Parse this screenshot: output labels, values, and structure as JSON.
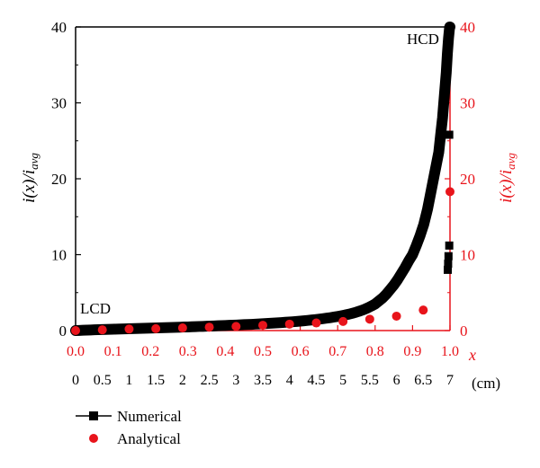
{
  "chart_data": {
    "type": "line",
    "xlabel_relative": "x",
    "xlabel_cm_unit": "(cm)",
    "ylabel_left": {
      "prefix": "i(x)/i",
      "subscript": "avg"
    },
    "ylabel_right": {
      "prefix": "i(x)/i",
      "subscript": "avg"
    },
    "xlim": [
      0.0,
      1.0
    ],
    "ylim": [
      0,
      40
    ],
    "x_ticks_relative": [
      "0.0",
      "0.1",
      "0.2",
      "0.3",
      "0.4",
      "0.5",
      "0.6",
      "0.7",
      "0.8",
      "0.9",
      "1.0"
    ],
    "x_ticks_cm": [
      "0",
      "0.5",
      "1",
      "1.5",
      "2",
      "2.5",
      "3",
      "3.5",
      "4",
      "4.5",
      "5",
      "5.5",
      "6",
      "6.5",
      "7"
    ],
    "y_ticks": [
      "0",
      "10",
      "20",
      "30",
      "40"
    ],
    "annotations": {
      "low": "LCD",
      "high": "HCD"
    },
    "colors": {
      "numerical": "#000000",
      "analytical": "#e8141b",
      "right_axis": "#e8141b"
    },
    "series": [
      {
        "name": "Numerical",
        "marker": "square",
        "x": [
          0.0,
          0.01,
          0.02,
          0.03,
          0.04,
          0.05,
          0.06,
          0.07,
          0.08,
          0.09,
          0.1,
          0.11,
          0.12,
          0.13,
          0.14,
          0.15,
          0.16,
          0.17,
          0.18,
          0.19,
          0.2,
          0.21,
          0.22,
          0.23,
          0.24,
          0.25,
          0.26,
          0.27,
          0.28,
          0.29,
          0.3,
          0.31,
          0.32,
          0.33,
          0.34,
          0.35,
          0.36,
          0.37,
          0.38,
          0.39,
          0.4,
          0.41,
          0.42,
          0.43,
          0.44,
          0.45,
          0.46,
          0.47,
          0.48,
          0.49,
          0.5,
          0.51,
          0.52,
          0.53,
          0.54,
          0.55,
          0.56,
          0.57,
          0.58,
          0.59,
          0.6,
          0.61,
          0.62,
          0.63,
          0.64,
          0.65,
          0.66,
          0.67,
          0.68,
          0.69,
          0.7,
          0.71,
          0.72,
          0.73,
          0.74,
          0.75,
          0.76,
          0.77,
          0.78,
          0.79,
          0.8,
          0.81,
          0.82,
          0.83,
          0.84,
          0.85,
          0.86,
          0.87,
          0.88,
          0.89,
          0.9,
          0.91,
          0.92,
          0.93,
          0.94,
          0.95,
          0.96,
          0.97,
          0.975,
          0.98,
          0.985,
          0.99,
          0.993,
          0.996,
          0.998,
          0.999,
          1.0
        ],
        "y": [
          0.0,
          0.02,
          0.04,
          0.06,
          0.08,
          0.1,
          0.12,
          0.13,
          0.15,
          0.16,
          0.18,
          0.19,
          0.21,
          0.22,
          0.24,
          0.25,
          0.27,
          0.28,
          0.3,
          0.31,
          0.33,
          0.34,
          0.36,
          0.37,
          0.39,
          0.4,
          0.42,
          0.43,
          0.45,
          0.47,
          0.48,
          0.5,
          0.52,
          0.54,
          0.55,
          0.57,
          0.59,
          0.61,
          0.63,
          0.65,
          0.67,
          0.69,
          0.71,
          0.73,
          0.75,
          0.78,
          0.8,
          0.82,
          0.85,
          0.87,
          0.9,
          0.93,
          0.96,
          0.99,
          1.02,
          1.05,
          1.09,
          1.12,
          1.16,
          1.2,
          1.24,
          1.29,
          1.34,
          1.39,
          1.44,
          1.5,
          1.56,
          1.63,
          1.7,
          1.78,
          1.86,
          1.95,
          2.05,
          2.16,
          2.29,
          2.43,
          2.59,
          2.77,
          2.98,
          3.23,
          3.5,
          3.9,
          4.3,
          4.8,
          5.4,
          6.0,
          6.7,
          7.5,
          8.3,
          9.2,
          10.0,
          11.2,
          12.5,
          14.0,
          16.0,
          18.5,
          21.0,
          23.5,
          25.8,
          28.0,
          31.0,
          34.0,
          36.5,
          38.5,
          39.5,
          40.0,
          40.0
        ],
        "markers": [
          {
            "x": 0.998,
            "y": 25.8
          },
          {
            "x": 0.998,
            "y": 11.2
          },
          {
            "x": 0.996,
            "y": 9.8
          },
          {
            "x": 0.995,
            "y": 8.8
          },
          {
            "x": 0.994,
            "y": 8.0
          }
        ]
      },
      {
        "name": "Analytical",
        "marker": "circle",
        "x": [
          0.0,
          0.0714,
          0.1429,
          0.2143,
          0.2857,
          0.3571,
          0.4286,
          0.5,
          0.5714,
          0.6429,
          0.7143,
          0.7857,
          0.8571,
          0.9286,
          1.0
        ],
        "y": [
          0.0,
          0.1,
          0.2,
          0.25,
          0.35,
          0.45,
          0.55,
          0.7,
          0.85,
          1.0,
          1.2,
          1.5,
          1.9,
          2.7,
          18.3
        ]
      }
    ]
  },
  "legend": [
    {
      "label": "Numerical",
      "marker": "square",
      "color": "#000000"
    },
    {
      "label": "Analytical",
      "marker": "circle",
      "color": "#e8141b"
    }
  ]
}
